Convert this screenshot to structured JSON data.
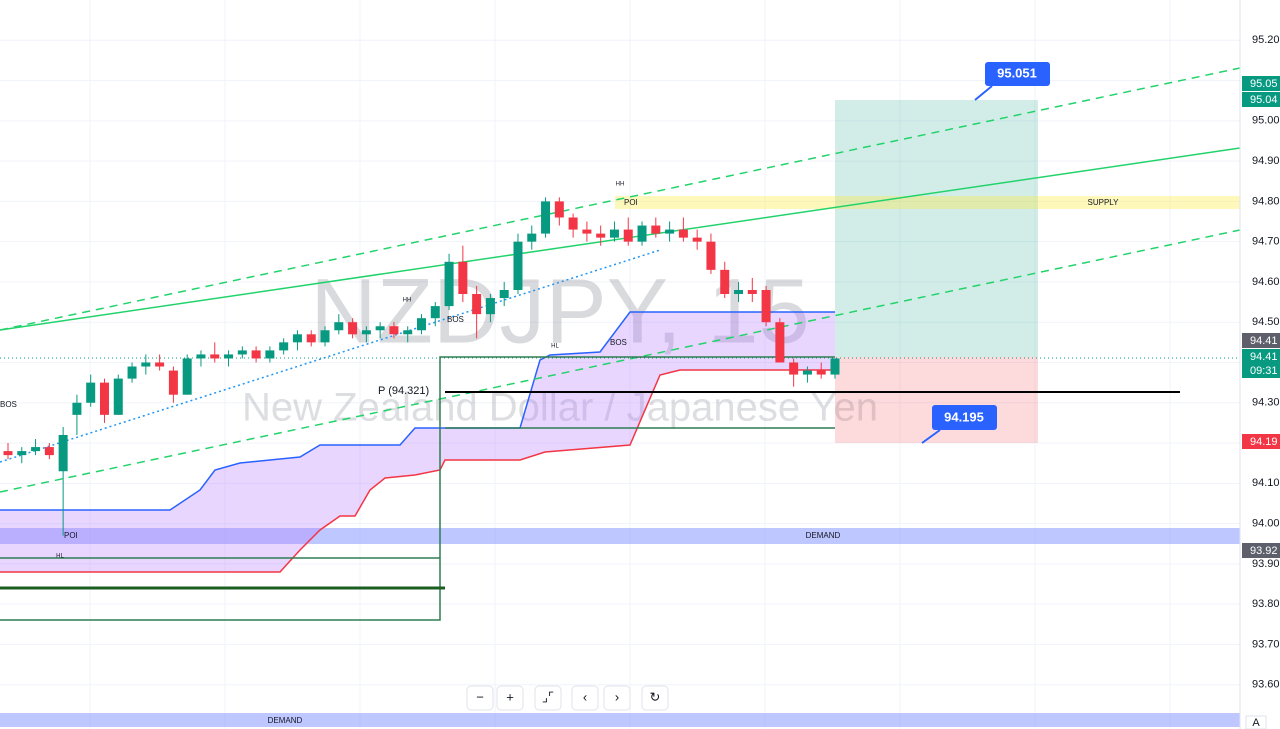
{
  "chart_data": {
    "type": "candlestick",
    "title": "NZDJPY, 15",
    "subtitle": "New Zealand Dollar / Japanese Yen",
    "up_color": "#089981",
    "down_color": "#f23645",
    "ylim": [
      93.49,
      95.3
    ],
    "yticks": [
      {
        "value": 93.6,
        "label": "93.60"
      },
      {
        "value": 93.7,
        "label": "93.70"
      },
      {
        "value": 93.8,
        "label": "93.80"
      },
      {
        "value": 93.9,
        "label": "93.90"
      },
      {
        "value": 94.0,
        "label": "94.00"
      },
      {
        "value": 94.1,
        "label": "94.10"
      },
      {
        "value": 94.2,
        "label": "94.20"
      },
      {
        "value": 94.3,
        "label": "94.30"
      },
      {
        "value": 94.4,
        "label": "94.40"
      },
      {
        "value": 94.5,
        "label": "94.50"
      },
      {
        "value": 94.6,
        "label": "94.60"
      },
      {
        "value": 94.7,
        "label": "94.70"
      },
      {
        "value": 94.8,
        "label": "94.80"
      },
      {
        "value": 94.9,
        "label": "94.90"
      },
      {
        "value": 95.0,
        "label": "95.00"
      },
      {
        "value": 95.1,
        "label": "95.10"
      },
      {
        "value": 95.2,
        "label": "95.20"
      }
    ],
    "grid": true,
    "open": [
      94.18,
      94.17,
      94.18,
      94.19,
      94.13,
      94.27,
      94.3,
      94.35,
      94.27,
      94.36,
      94.39,
      94.4,
      94.38,
      94.32,
      94.41,
      94.42,
      94.41,
      94.42,
      94.43,
      94.41,
      94.43,
      94.45,
      94.47,
      94.45,
      94.48,
      94.5,
      94.47,
      94.48,
      94.49,
      94.47,
      94.48,
      94.51,
      94.54,
      94.65,
      94.57,
      94.52,
      94.56,
      94.58,
      94.7,
      94.72,
      94.8,
      94.76,
      94.73,
      94.72,
      94.71,
      94.73,
      94.7,
      94.74,
      94.72,
      94.73,
      94.71,
      94.7,
      94.63,
      94.57,
      94.58,
      94.58,
      94.5,
      94.4,
      94.37,
      94.38,
      94.37
    ],
    "high": [
      94.2,
      94.19,
      94.21,
      94.2,
      94.24,
      94.32,
      94.37,
      94.36,
      94.37,
      94.4,
      94.42,
      94.42,
      94.39,
      94.42,
      94.43,
      94.45,
      94.43,
      94.44,
      94.44,
      94.44,
      94.46,
      94.48,
      94.48,
      94.49,
      94.52,
      94.51,
      94.49,
      94.5,
      94.5,
      94.49,
      94.52,
      94.55,
      94.67,
      94.69,
      94.59,
      94.57,
      94.6,
      94.72,
      94.74,
      94.81,
      94.81,
      94.77,
      94.75,
      94.74,
      94.75,
      94.76,
      94.75,
      94.76,
      94.75,
      94.76,
      94.73,
      94.72,
      94.65,
      94.6,
      94.61,
      94.59,
      94.51,
      94.41,
      94.39,
      94.4,
      94.41
    ],
    "low": [
      94.16,
      94.15,
      94.17,
      94.16,
      93.97,
      94.22,
      94.29,
      94.25,
      94.27,
      94.35,
      94.37,
      94.38,
      94.3,
      94.32,
      94.39,
      94.4,
      94.39,
      94.41,
      94.4,
      94.4,
      94.42,
      94.43,
      94.44,
      94.44,
      94.47,
      94.46,
      94.45,
      94.46,
      94.46,
      94.45,
      94.47,
      94.49,
      94.53,
      94.55,
      94.46,
      94.5,
      94.54,
      94.57,
      94.68,
      94.71,
      94.74,
      94.71,
      94.7,
      94.69,
      94.7,
      94.69,
      94.69,
      94.71,
      94.7,
      94.7,
      94.68,
      94.62,
      94.56,
      94.55,
      94.55,
      94.49,
      94.4,
      94.34,
      94.35,
      94.36,
      94.36
    ],
    "close": [
      94.17,
      94.18,
      94.19,
      94.17,
      94.22,
      94.3,
      94.35,
      94.27,
      94.36,
      94.39,
      94.4,
      94.39,
      94.32,
      94.41,
      94.42,
      94.41,
      94.42,
      94.43,
      94.41,
      94.43,
      94.45,
      94.47,
      94.45,
      94.48,
      94.5,
      94.47,
      94.48,
      94.49,
      94.47,
      94.48,
      94.51,
      94.54,
      94.65,
      94.57,
      94.52,
      94.56,
      94.58,
      94.7,
      94.72,
      94.8,
      94.76,
      94.73,
      94.72,
      94.71,
      94.73,
      94.7,
      94.74,
      94.72,
      94.73,
      94.71,
      94.7,
      94.63,
      94.57,
      94.58,
      94.57,
      94.5,
      94.4,
      94.37,
      94.38,
      94.37,
      94.41
    ],
    "annotations": {
      "target": "95.051",
      "stop": "94.195",
      "pivot": "P (94.321)",
      "supply": "SUPPLY",
      "demand_1": "DEMAND",
      "demand_2": "DEMAND",
      "poi_1": "POI",
      "poi_2": "POI",
      "bos_1": "BOS",
      "bos_2": "BOS",
      "bos_3": "BOS",
      "hh_1": "HH",
      "hh_2": "HH",
      "hl_1": "HL",
      "hl_2": "HL"
    },
    "price_labels": [
      "95.05",
      "95.04",
      "94.41",
      "94.41",
      "09:31",
      "94.19",
      "93.92"
    ],
    "toolbar": [
      "−",
      "+",
      "⌟⌜",
      "‹",
      "›",
      "↻"
    ],
    "corner": "A"
  }
}
